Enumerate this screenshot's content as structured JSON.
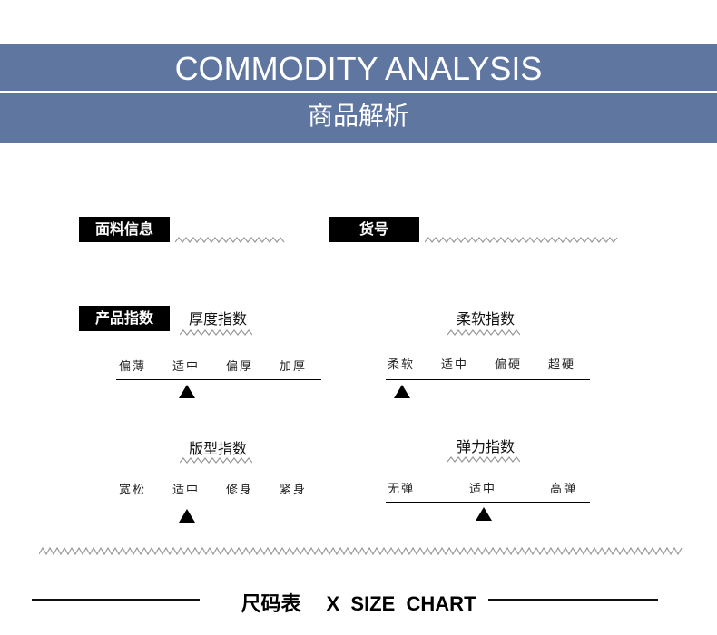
{
  "header": {
    "title_en": "COMMODITY ANALYSIS",
    "title_cn": "商品解析",
    "color": "#5f76a0"
  },
  "fabric": {
    "label": "面料信息"
  },
  "item_no": {
    "label": "货号"
  },
  "product_index": {
    "label": "产品指数"
  },
  "scales": [
    {
      "title": "厚度指数",
      "options": [
        "偏薄",
        "适中",
        "偏厚",
        "加厚"
      ],
      "selected": 1
    },
    {
      "title": "柔软指数",
      "options": [
        "柔软",
        "适中",
        "偏硬",
        "超硬"
      ],
      "selected": 0
    },
    {
      "title": "版型指数",
      "options": [
        "宽松",
        "适中",
        "修身",
        "紧身"
      ],
      "selected": 1
    },
    {
      "title": "弹力指数",
      "options": [
        "无弹",
        "适中",
        "高弹"
      ],
      "selected": 1
    }
  ],
  "footer": {
    "cn": "尺码表",
    "en": "X  SIZE  CHART"
  }
}
